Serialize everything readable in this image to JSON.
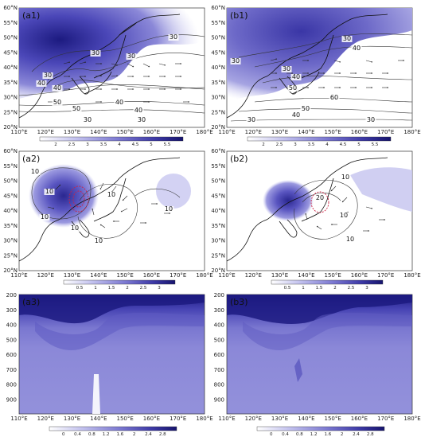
{
  "figure": {
    "panels": [
      {
        "id": "a1",
        "tag": "(a1)",
        "lat_ticks": [
          "60°N",
          "55°N",
          "50°N",
          "45°N",
          "40°N",
          "35°N",
          "30°N",
          "25°N",
          "20°N"
        ],
        "lon_ticks": [
          "110°E",
          "120°E",
          "130°E",
          "140°E",
          "150°E",
          "160°E",
          "170°E",
          "180°E"
        ],
        "contour_labels": [
          "30",
          "30",
          "40",
          "40",
          "30",
          "30",
          "50",
          "50",
          "40",
          "40",
          "30",
          "30"
        ],
        "colorbar": [
          "2",
          "2.5",
          "3",
          "3.5",
          "4",
          "4.5",
          "5",
          "5.5"
        ]
      },
      {
        "id": "b1",
        "tag": "(b1)",
        "lat_ticks": [
          "60°N",
          "55°N",
          "50°N",
          "45°N",
          "40°N",
          "35°N",
          "30°N",
          "25°N",
          "20°N"
        ],
        "lon_ticks": [
          "110°E",
          "120°E",
          "130°E",
          "140°E",
          "150°E",
          "160°E",
          "170°E",
          "180°E"
        ],
        "contour_labels": [
          "30",
          "40",
          "30",
          "30",
          "40",
          "50",
          "60",
          "50",
          "40",
          "30",
          "30"
        ],
        "colorbar": [
          "2",
          "2.5",
          "3",
          "3.5",
          "4",
          "4.5",
          "5",
          "5.5"
        ]
      },
      {
        "id": "a2",
        "tag": "(a2)",
        "lat_ticks": [
          "60°N",
          "55°N",
          "50°N",
          "45°N",
          "40°N",
          "35°N",
          "30°N",
          "25°N",
          "20°N"
        ],
        "lon_ticks": [
          "110°E",
          "120°E",
          "130°E",
          "140°E",
          "150°E",
          "160°E",
          "170°E",
          "180°E"
        ],
        "contour_labels": [
          "10",
          "10",
          "10",
          "10",
          "10",
          "10",
          "10"
        ],
        "colorbar": [
          "0.5",
          "1",
          "1.5",
          "2",
          "2.5",
          "3"
        ]
      },
      {
        "id": "b2",
        "tag": "(b2)",
        "lat_ticks": [
          "60°N",
          "55°N",
          "50°N",
          "45°N",
          "40°N",
          "35°N",
          "30°N",
          "25°N",
          "20°N"
        ],
        "lon_ticks": [
          "110°E",
          "120°E",
          "130°E",
          "140°E",
          "150°E",
          "160°E",
          "170°E",
          "180°E"
        ],
        "contour_labels": [
          "10",
          "20",
          "10",
          "10"
        ],
        "colorbar": [
          "0.5",
          "1",
          "1.5",
          "2",
          "2.5",
          "3"
        ]
      },
      {
        "id": "a3",
        "tag": "(a3)",
        "p_ticks": [
          "200",
          "300",
          "400",
          "500",
          "600",
          "700",
          "800",
          "900"
        ],
        "lon_ticks": [
          "110°E",
          "120°E",
          "130°E",
          "140°E",
          "150°E",
          "160°E",
          "170°E",
          "180°E"
        ],
        "colorbar": [
          "0",
          "0.4",
          "0.8",
          "1.2",
          "1.6",
          "2",
          "2.4",
          "2.8"
        ]
      },
      {
        "id": "b3",
        "tag": "(b3)",
        "p_ticks": [
          "200",
          "300",
          "400",
          "500",
          "600",
          "700",
          "800",
          "900"
        ],
        "lon_ticks": [
          "110°E",
          "120°E",
          "130°E",
          "140°E",
          "150°E",
          "160°E",
          "170°E",
          "180°E"
        ],
        "colorbar": [
          "0",
          "0.4",
          "0.8",
          "1.2",
          "1.6",
          "2",
          "2.4",
          "2.8"
        ]
      }
    ],
    "colors": {
      "deep": "#1c1a80",
      "mid": "#4b47b8",
      "light": "#9a98e0",
      "pale": "#d6d5f5",
      "red": "#cc2244"
    }
  }
}
